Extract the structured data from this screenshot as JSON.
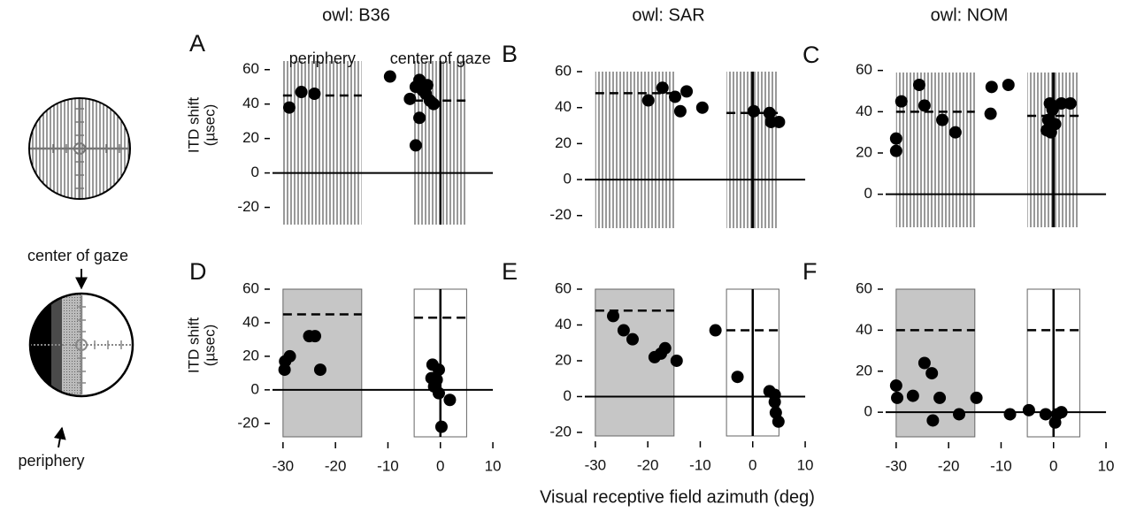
{
  "figure_labels": {
    "center_of_gaze": "center of gaze",
    "periphery": "periphery"
  },
  "chart_data": [
    {
      "type": "scatter",
      "panel": "A",
      "title": "owl: B36",
      "ylabel": [
        "ITD shift",
        "(µsec)"
      ],
      "annotations": [
        "periphery",
        "center of gaze"
      ],
      "color": "#000000",
      "xlim": [
        -32,
        10
      ],
      "ylim": [
        -30,
        65
      ],
      "yticks": [
        -20,
        0,
        20,
        40,
        60
      ],
      "regions": [
        {
          "x": [
            -30,
            -15
          ],
          "fill": "stripes"
        },
        {
          "x": [
            -5,
            5
          ],
          "fill": "stripes"
        }
      ],
      "reference_lines": [
        {
          "x": [
            -30,
            -15
          ],
          "y": 45
        },
        {
          "x": [
            -5,
            5
          ],
          "y": 42
        }
      ],
      "x": [
        -28.8,
        -26.5,
        -24,
        -9.6,
        -5.8,
        -4.7,
        -4,
        -3.4,
        -2.8,
        -2.5,
        -2,
        -1.3,
        -4,
        -4.7
      ],
      "y": [
        38,
        47,
        46,
        56,
        43,
        50,
        54,
        48,
        46,
        51,
        42,
        40,
        32,
        16
      ]
    },
    {
      "type": "scatter",
      "panel": "B",
      "title": "owl: SAR",
      "color": "#000000",
      "xlim": [
        -32,
        10
      ],
      "ylim": [
        -27,
        60
      ],
      "yticks": [
        -20,
        0,
        20,
        40,
        60
      ],
      "regions": [
        {
          "x": [
            -30,
            -15
          ],
          "fill": "stripes"
        },
        {
          "x": [
            -5,
            5
          ],
          "fill": "stripes"
        }
      ],
      "reference_lines": [
        {
          "x": [
            -30,
            -15
          ],
          "y": 48
        },
        {
          "x": [
            -5,
            5
          ],
          "y": 37
        }
      ],
      "x": [
        -19.9,
        -17.2,
        -14.8,
        -13.8,
        -12.6,
        -9.6,
        0.2,
        3.2,
        3.5,
        5
      ],
      "y": [
        44,
        51,
        46,
        38,
        49,
        40,
        38,
        37,
        32,
        32
      ]
    },
    {
      "type": "scatter",
      "panel": "C",
      "title": "owl: NOM",
      "color": "#000000",
      "xlim": [
        -32,
        10
      ],
      "ylim": [
        -16,
        59
      ],
      "yticks": [
        0,
        20,
        40,
        60
      ],
      "regions": [
        {
          "x": [
            -30,
            -15
          ],
          "fill": "stripes"
        },
        {
          "x": [
            -5,
            5
          ],
          "fill": "stripes"
        }
      ],
      "reference_lines": [
        {
          "x": [
            -30,
            -15
          ],
          "y": 40
        },
        {
          "x": [
            -5,
            5
          ],
          "y": 38
        }
      ],
      "x": [
        -30,
        -30,
        -29,
        -25.6,
        -24.6,
        -21.2,
        -18.7,
        -12,
        -11.8,
        -8.6,
        -1.3,
        -1,
        -0.7,
        -0.2,
        0.3,
        1.5,
        3.2,
        -0.5
      ],
      "y": [
        27,
        21,
        45,
        53,
        43,
        36,
        30,
        39,
        52,
        53,
        31,
        36,
        44,
        41,
        34,
        44,
        44,
        30
      ]
    },
    {
      "type": "scatter",
      "panel": "D",
      "ylabel": [
        "ITD shift",
        "(µsec)"
      ],
      "color": "#000000",
      "xlim": [
        -32,
        10
      ],
      "xticks": [
        -30,
        -20,
        -10,
        0,
        10
      ],
      "ylim": [
        -28,
        60
      ],
      "yticks": [
        -20,
        0,
        20,
        40,
        60
      ],
      "regions": [
        {
          "x": [
            -30,
            -15
          ],
          "fill": "gray"
        },
        {
          "x": [
            -5,
            5
          ],
          "fill": "none"
        }
      ],
      "reference_lines": [
        {
          "x": [
            -30,
            -15
          ],
          "y": 45
        },
        {
          "x": [
            -5,
            5
          ],
          "y": 43
        }
      ],
      "x": [
        -29.7,
        -29.6,
        -28.7,
        -25,
        -23.9,
        -22.9,
        -1.5,
        -1.7,
        -0.3,
        -1.2,
        -0.3,
        0.2,
        1.8,
        -0.7
      ],
      "y": [
        12,
        17,
        20,
        32,
        32,
        12,
        15,
        7,
        12,
        2,
        -2,
        -22,
        -6,
        6
      ]
    },
    {
      "type": "scatter",
      "panel": "E",
      "xlabel": "Visual receptive field azimuth (deg)",
      "color": "#000000",
      "xlim": [
        -32,
        10
      ],
      "xticks": [
        -30,
        -20,
        -10,
        0,
        10
      ],
      "ylim": [
        -22,
        60
      ],
      "yticks": [
        -20,
        0,
        20,
        40,
        60
      ],
      "regions": [
        {
          "x": [
            -30,
            -15
          ],
          "fill": "gray"
        },
        {
          "x": [
            -5,
            5
          ],
          "fill": "none"
        }
      ],
      "reference_lines": [
        {
          "x": [
            -30,
            -15
          ],
          "y": 48
        },
        {
          "x": [
            -5,
            5
          ],
          "y": 37
        }
      ],
      "x": [
        -26.6,
        -24.6,
        -22.9,
        -18.7,
        -17.5,
        -16.7,
        -14.5,
        -7.1,
        -2.9,
        3.2,
        4.2,
        4.4,
        4.9,
        4.2
      ],
      "y": [
        45,
        37,
        32,
        22,
        24,
        27,
        20,
        37,
        11,
        3,
        -3,
        -9,
        -14,
        1
      ]
    },
    {
      "type": "scatter",
      "panel": "F",
      "color": "#000000",
      "xlim": [
        -32,
        10
      ],
      "xticks": [
        -30,
        -20,
        -10,
        0,
        10
      ],
      "ylim": [
        -12,
        60
      ],
      "yticks": [
        0,
        20,
        40,
        60
      ],
      "regions": [
        {
          "x": [
            -30,
            -15
          ],
          "fill": "gray"
        },
        {
          "x": [
            -5,
            5
          ],
          "fill": "none"
        }
      ],
      "reference_lines": [
        {
          "x": [
            -30,
            -15
          ],
          "y": 40
        },
        {
          "x": [
            -5,
            5
          ],
          "y": 40
        }
      ],
      "x": [
        -30,
        -29.8,
        -26.8,
        -24.6,
        -23.2,
        -23,
        -21.7,
        -18,
        -14.7,
        -8.3,
        -4.7,
        -1.5,
        0.3,
        0.7,
        1.5
      ],
      "y": [
        13,
        7,
        8,
        24,
        19,
        -4,
        7,
        -1,
        7,
        -1,
        1,
        -1,
        -5,
        -1,
        0
      ]
    }
  ]
}
